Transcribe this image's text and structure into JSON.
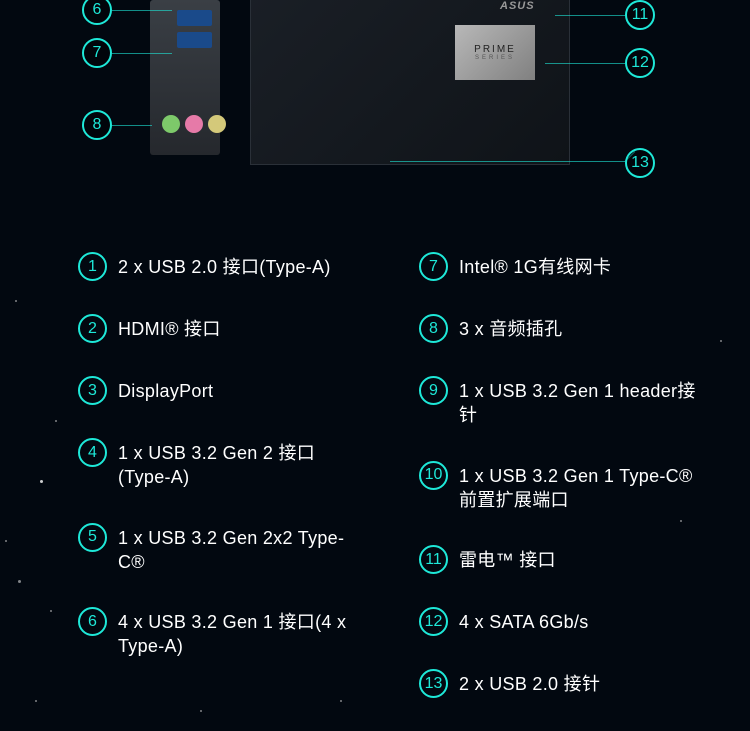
{
  "colors": {
    "accent": "#1ee8d8",
    "background": "#020810",
    "text": "#ffffff"
  },
  "chip": {
    "brand": "PRIME",
    "sub": "SERIES"
  },
  "diagram": {
    "board_logo": "ASUS",
    "markers_left": [
      "6",
      "7",
      "8"
    ],
    "markers_right": [
      "11",
      "12",
      "13"
    ]
  },
  "legend": {
    "col1": [
      {
        "num": "1",
        "label": "2 x USB 2.0 接口(Type-A)"
      },
      {
        "num": "2",
        "label": "HDMI® 接口"
      },
      {
        "num": "3",
        "label": "DisplayPort"
      },
      {
        "num": "4",
        "label": "1 x USB 3.2 Gen 2 接口(Type-A)"
      },
      {
        "num": "5",
        "label": "1 x USB 3.2 Gen 2x2 Type-C®"
      },
      {
        "num": "6",
        "label": "4 x USB 3.2 Gen 1 接口(4 x Type-A)"
      }
    ],
    "col2": [
      {
        "num": "7",
        "label": "Intel® 1G有线网卡"
      },
      {
        "num": "8",
        "label": "3 x 音频插孔"
      },
      {
        "num": "9",
        "label": "1 x USB 3.2 Gen 1 header接针"
      },
      {
        "num": "10",
        "label": "1 x USB 3.2 Gen 1 Type-C®前置扩展端口"
      },
      {
        "num": "11",
        "label": "雷电™ 接口"
      },
      {
        "num": "12",
        "label": "4 x SATA 6Gb/s"
      },
      {
        "num": "13",
        "label": "2 x USB 2.0 接针"
      }
    ]
  }
}
